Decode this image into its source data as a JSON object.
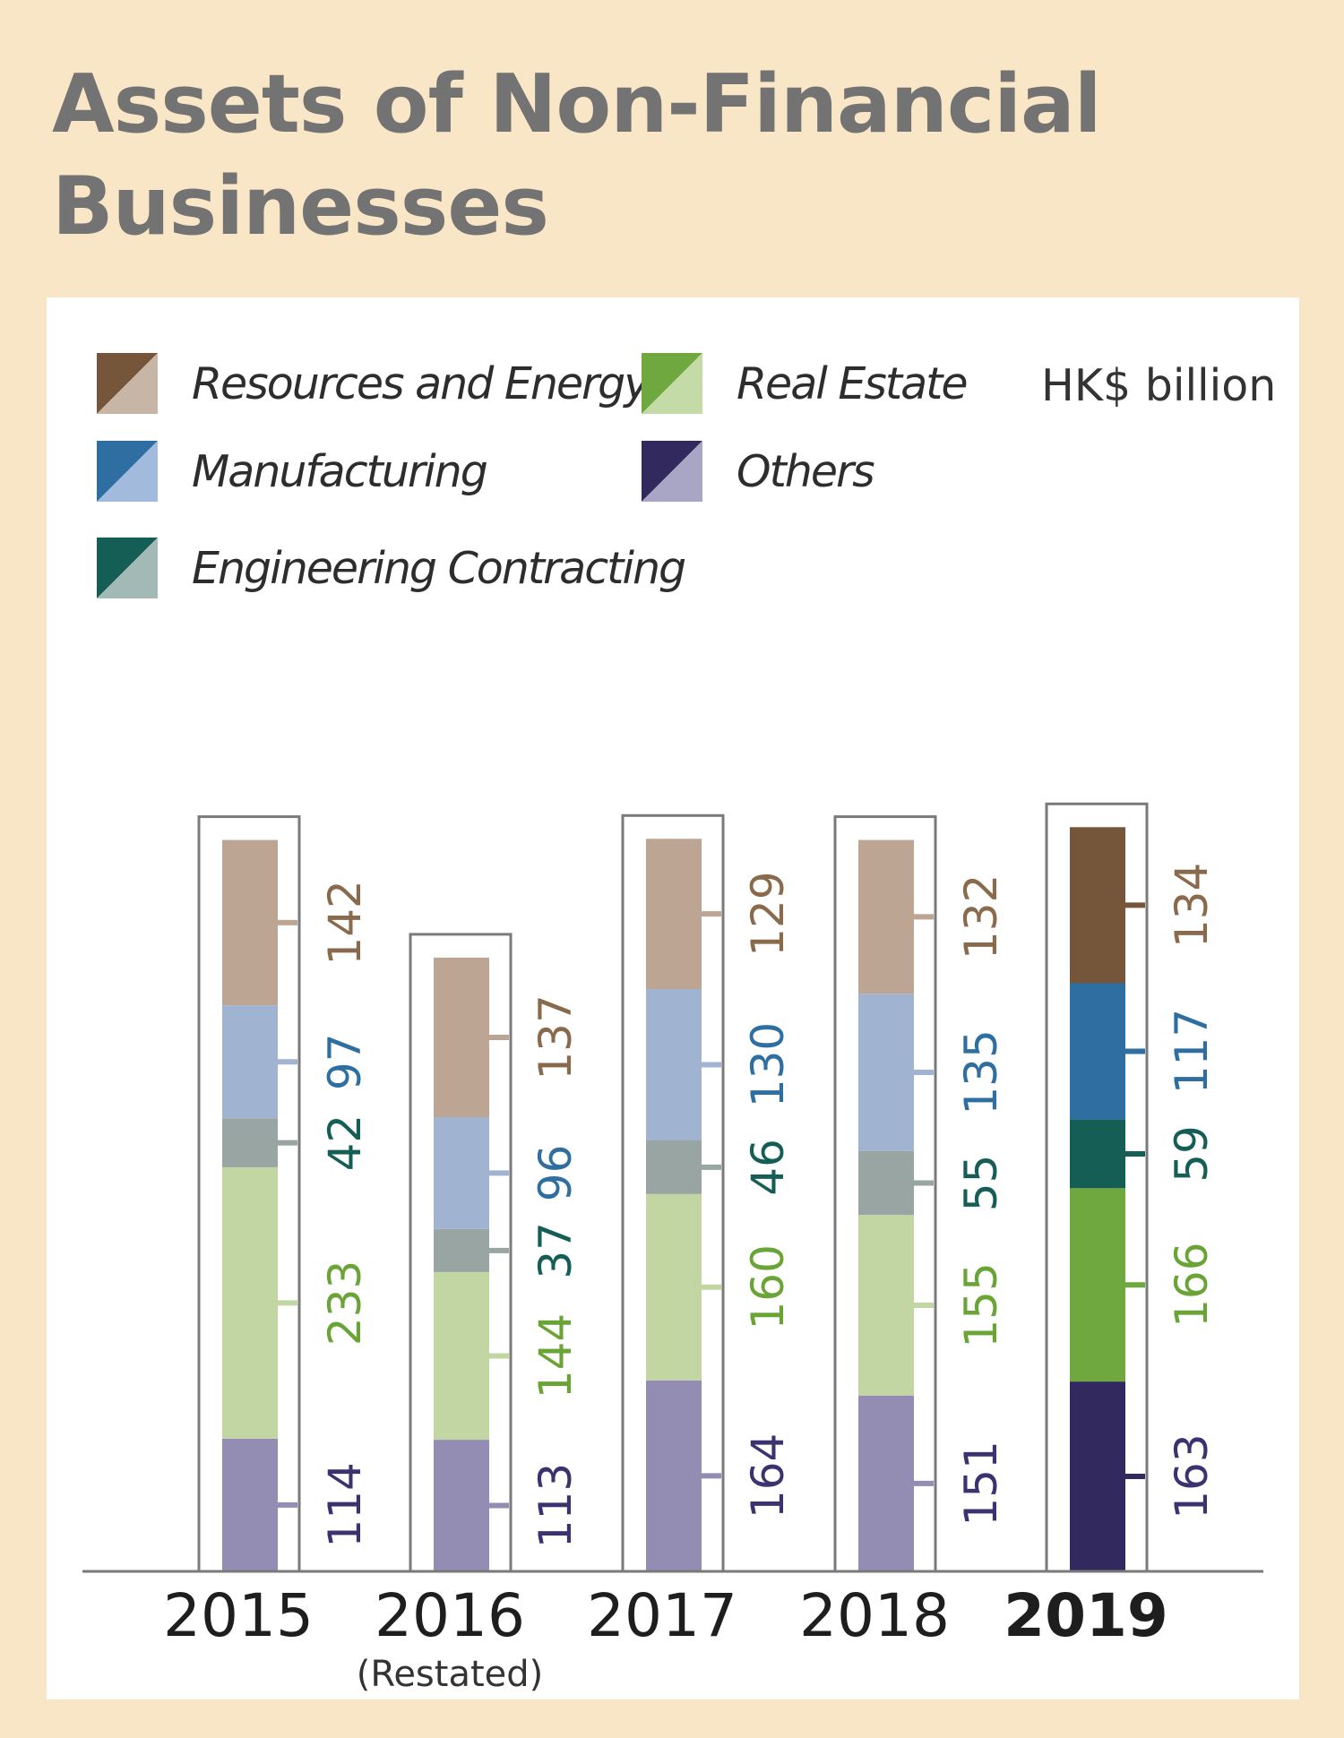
{
  "title": "Assets of Non-Financial Businesses",
  "unit": "HK$ billion",
  "colors": {
    "resources": "#76563a",
    "manufacturing": "#2e6ea0",
    "engineering": "#155e56",
    "real_estate": "#6ea83f",
    "others": "#322a5e"
  },
  "legend": [
    {
      "label": "Resources and Energy",
      "key": "resources",
      "dark": "#76563a",
      "light": "#c7b5a6"
    },
    {
      "label": "Manufacturing",
      "key": "manufacturing",
      "dark": "#2e6ea0",
      "light": "#a2bbdc"
    },
    {
      "label": "Engineering Contracting",
      "key": "engineering",
      "dark": "#155e56",
      "light": "#a3b9b5"
    },
    {
      "label": "Real Estate",
      "key": "real_estate",
      "dark": "#6ea83f",
      "light": "#c4dba7"
    },
    {
      "label": "Others",
      "key": "others",
      "dark": "#322a5e",
      "light": "#a9a5c4"
    }
  ],
  "chart_data": {
    "type": "bar",
    "stacked": true,
    "title": "Assets of Non-Financial Businesses",
    "ylabel": "HK$ billion",
    "categories": [
      "2015",
      "2016",
      "2017",
      "2018",
      "2019"
    ],
    "category_notes": [
      "",
      "(Restated)",
      "",
      "",
      ""
    ],
    "highlight_category": "2019",
    "series": [
      {
        "name": "Others",
        "key": "others",
        "values": [
          114,
          113,
          164,
          151,
          163
        ],
        "faded_color": "#938cb3",
        "label_color": "#3b3270"
      },
      {
        "name": "Real Estate",
        "key": "real_estate",
        "values": [
          233,
          144,
          160,
          155,
          166
        ],
        "faded_color": "#c2d6a3",
        "label_color": "#6aa336"
      },
      {
        "name": "Engineering Contracting",
        "key": "engineering",
        "values": [
          42,
          37,
          46,
          55,
          59
        ],
        "faded_color": "#99a5a2",
        "label_color": "#155e56"
      },
      {
        "name": "Manufacturing",
        "key": "manufacturing",
        "values": [
          97,
          96,
          130,
          135,
          117
        ],
        "faded_color": "#a0b4d2",
        "label_color": "#2e6ea0"
      },
      {
        "name": "Resources and Energy",
        "key": "resources",
        "values": [
          142,
          137,
          129,
          132,
          134
        ],
        "faded_color": "#bca592",
        "label_color": "#8a6a4c"
      }
    ]
  }
}
